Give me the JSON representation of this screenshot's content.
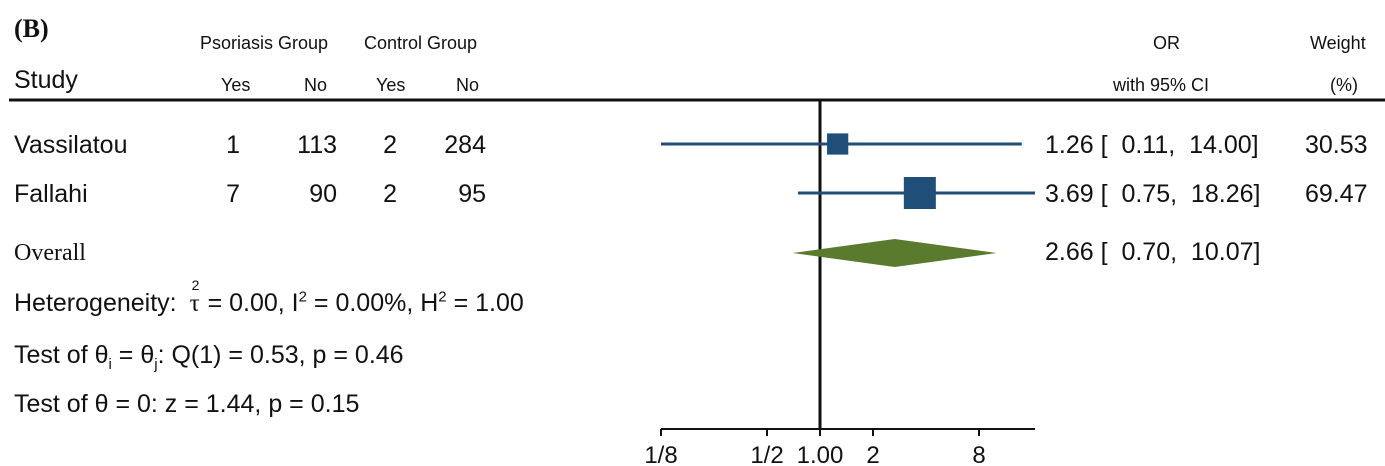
{
  "panel_label": "(B)",
  "header": {
    "study": "Study",
    "psoriasis_group": "Psoriasis Group",
    "control_group": "Control Group",
    "yes": "Yes",
    "no": "No",
    "or_line1": "OR",
    "or_line2": "with 95% CI",
    "weight_line1": "Weight",
    "weight_line2": "(%)"
  },
  "rows": [
    {
      "study": "Vassilatou",
      "ps_yes": "1",
      "ps_no": "113",
      "ctl_yes": "2",
      "ctl_no": "284",
      "or_text": "1.26 [  0.11,  14.00]",
      "weight": "30.53"
    },
    {
      "study": "Fallahi",
      "ps_yes": "7",
      "ps_no": "90",
      "ctl_yes": "2",
      "ctl_no": "95",
      "or_text": "3.69 [  0.75,  18.26]",
      "weight": "69.47"
    }
  ],
  "overall": {
    "label": "Overall",
    "or_text": "2.66 [  0.70,  10.07]"
  },
  "stats": {
    "heterogeneity_prefix": "Heterogeneity:",
    "tau_symbol": "τ",
    "tau_sup": "2",
    "tau_value": "= 0.00, I",
    "i_sup": "2",
    "i_value": "= 0.00%, H",
    "h_sup": "2",
    "h_value": "= 1.00",
    "test1_prefix": "Test of θ",
    "test1_sub_i": "i",
    "test1_eq": "= θ",
    "test1_sub_j": "j",
    "test1_rest": ": Q(1) = 0.53, p = 0.46",
    "test2": "Test of θ = 0: z = 1.44, p = 0.15"
  },
  "chart_data": {
    "type": "forest",
    "scale": "log2",
    "xlim": [
      0.125,
      16
    ],
    "reference_line": 1,
    "ticks": [
      0.125,
      0.5,
      1,
      2,
      8
    ],
    "tick_labels": [
      "1/8",
      "1/2",
      "1.00",
      "2",
      "8"
    ],
    "studies": [
      {
        "name": "Vassilatou",
        "or": 1.26,
        "ci_low": 0.11,
        "ci_high": 14.0,
        "weight": 30.53
      },
      {
        "name": "Fallahi",
        "or": 3.69,
        "ci_low": 0.75,
        "ci_high": 18.26,
        "weight": 69.47
      }
    ],
    "overall": {
      "or": 2.66,
      "ci_low": 0.7,
      "ci_high": 10.07
    },
    "colors": {
      "study_marker": "#1f4e79",
      "ci_line": "#1f4e79",
      "diamond": "#5a7a2e",
      "axis": "#111111"
    }
  }
}
